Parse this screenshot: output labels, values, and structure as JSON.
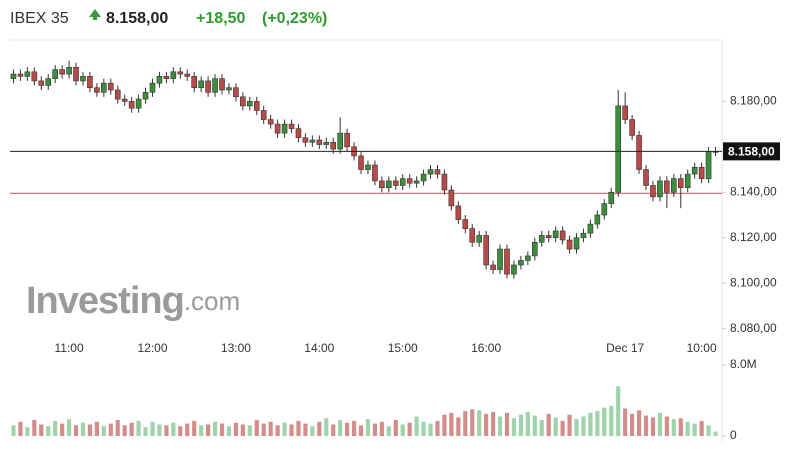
{
  "chart_data": {
    "type": "candlestick",
    "title": "IBEX 35",
    "price_line": {
      "value": 8158,
      "label": "8.158,00"
    },
    "change": "+18,50",
    "change_percent": "(+0,23%)",
    "reference_line": 8139.5,
    "watermark": "Investing",
    "watermark_suffix": ".com",
    "colors": {
      "up": "#3b8e3b",
      "down": "#b94a48",
      "up_volume": "#9fd3aa",
      "down_volume": "#d48c8a",
      "reference": "#d9777a"
    },
    "categories": [
      null,
      null,
      null,
      null,
      null,
      null,
      null,
      null,
      "11:00",
      null,
      null,
      null,
      null,
      null,
      null,
      null,
      null,
      null,
      null,
      null,
      "12:00",
      null,
      null,
      null,
      null,
      null,
      null,
      null,
      null,
      null,
      null,
      null,
      "13:00",
      null,
      null,
      null,
      null,
      null,
      null,
      null,
      null,
      null,
      null,
      null,
      "14:00",
      null,
      null,
      null,
      null,
      null,
      null,
      null,
      null,
      null,
      null,
      null,
      "15:00",
      null,
      null,
      null,
      null,
      null,
      null,
      null,
      null,
      null,
      null,
      null,
      "16:00",
      null,
      null,
      null,
      null,
      null,
      null,
      null,
      null,
      null,
      null,
      null,
      null,
      null,
      null,
      null,
      null,
      null,
      null,
      null,
      "Dec 17",
      null,
      null,
      null,
      null,
      null,
      null,
      null,
      null,
      null,
      null,
      "10:00",
      null,
      null
    ],
    "open": [
      8190,
      8192,
      8191,
      8193,
      8189,
      8187,
      8190,
      8194,
      8192,
      8195,
      8189,
      8191,
      8186,
      8184,
      8188,
      8185,
      8181,
      8180,
      8177,
      8181,
      8184,
      8188,
      8191,
      8190,
      8193,
      8192,
      8191,
      8186,
      8189,
      8184,
      8190,
      8185,
      8186,
      8182,
      8178,
      8180,
      8176,
      8172,
      8170,
      8166,
      8170,
      8168,
      8164,
      8162,
      8163,
      8161,
      8162,
      8159,
      8166,
      8160,
      8156,
      8150,
      8152,
      8145,
      8142,
      8145,
      8143,
      8146,
      8144,
      8145,
      8148,
      8150,
      8148,
      8141,
      8134,
      8128,
      8124,
      8118,
      8121,
      8108,
      8106,
      8115,
      8104,
      8108,
      8110,
      8112,
      8118,
      8121,
      8120,
      8123,
      8119,
      8115,
      8120,
      8122,
      8126,
      8130,
      8135,
      8140,
      8178,
      8172,
      8165,
      8150,
      8143,
      8138,
      8145,
      8140,
      8146,
      8142,
      8148,
      8151,
      8146,
      8158
    ],
    "high": [
      8194,
      8194,
      8195,
      8195,
      8191,
      8192,
      8196,
      8196,
      8198,
      8197,
      8193,
      8193,
      8188,
      8190,
      8190,
      8187,
      8183,
      8182,
      8183,
      8186,
      8190,
      8193,
      8193,
      8195,
      8195,
      8194,
      8193,
      8191,
      8191,
      8192,
      8192,
      8188,
      8188,
      8184,
      8182,
      8182,
      8178,
      8174,
      8172,
      8172,
      8172,
      8170,
      8166,
      8165,
      8165,
      8164,
      8164,
      8173,
      8168,
      8162,
      8158,
      8154,
      8154,
      8147,
      8147,
      8147,
      8148,
      8148,
      8147,
      8150,
      8152,
      8152,
      8150,
      8143,
      8136,
      8130,
      8126,
      8123,
      8123,
      8110,
      8117,
      8117,
      8110,
      8112,
      8114,
      8120,
      8123,
      8123,
      8125,
      8125,
      8121,
      8122,
      8124,
      8128,
      8132,
      8137,
      8142,
      8185,
      8184,
      8174,
      8167,
      8152,
      8145,
      8147,
      8147,
      8148,
      8148,
      8150,
      8153,
      8153,
      8160,
      8160
    ],
    "low": [
      8188,
      8189,
      8189,
      8187,
      8185,
      8185,
      8188,
      8190,
      8190,
      8187,
      8187,
      8184,
      8182,
      8182,
      8183,
      8179,
      8178,
      8175,
      8175,
      8179,
      8182,
      8186,
      8188,
      8188,
      8190,
      8189,
      8184,
      8184,
      8182,
      8182,
      8183,
      8183,
      8180,
      8176,
      8176,
      8174,
      8170,
      8168,
      8164,
      8164,
      8166,
      8162,
      8160,
      8160,
      8159,
      8159,
      8157,
      8157,
      8158,
      8154,
      8148,
      8148,
      8143,
      8140,
      8140,
      8141,
      8141,
      8142,
      8142,
      8143,
      8146,
      8146,
      8139,
      8132,
      8126,
      8122,
      8116,
      8116,
      8106,
      8104,
      8104,
      8102,
      8102,
      8106,
      8108,
      8110,
      8116,
      8118,
      8118,
      8117,
      8113,
      8113,
      8118,
      8120,
      8124,
      8128,
      8133,
      8138,
      8170,
      8163,
      8148,
      8141,
      8136,
      8136,
      8133,
      8138,
      8133,
      8140,
      8146,
      8144,
      8144,
      8156
    ],
    "close": [
      8192,
      8191,
      8193,
      8189,
      8187,
      8190,
      8194,
      8192,
      8195,
      8189,
      8191,
      8186,
      8184,
      8188,
      8185,
      8181,
      8180,
      8177,
      8181,
      8184,
      8188,
      8191,
      8190,
      8193,
      8192,
      8191,
      8186,
      8189,
      8184,
      8190,
      8185,
      8186,
      8182,
      8178,
      8180,
      8176,
      8172,
      8170,
      8166,
      8170,
      8168,
      8164,
      8162,
      8163,
      8161,
      8162,
      8159,
      8166,
      8160,
      8156,
      8150,
      8152,
      8145,
      8142,
      8145,
      8143,
      8146,
      8144,
      8145,
      8148,
      8150,
      8148,
      8141,
      8134,
      8128,
      8124,
      8118,
      8121,
      8108,
      8106,
      8115,
      8104,
      8108,
      8110,
      8112,
      8118,
      8121,
      8120,
      8123,
      8119,
      8115,
      8120,
      8122,
      8126,
      8130,
      8135,
      8140,
      8178,
      8172,
      8165,
      8150,
      8143,
      8138,
      8145,
      8140,
      8146,
      8142,
      8148,
      8151,
      8146,
      8158,
      8158
    ],
    "ylim": [
      8075,
      8207
    ],
    "yticks": [
      {
        "value": 8180,
        "label": "8.180,00"
      },
      {
        "value": 8140,
        "label": "8.140,00"
      },
      {
        "value": 8120,
        "label": "8.120,00"
      },
      {
        "value": 8100,
        "label": "8.100,00"
      },
      {
        "value": 8080,
        "label": "8.080,00"
      }
    ],
    "volume": {
      "values": [
        1.2,
        1.6,
        1.0,
        1.8,
        1.3,
        1.1,
        1.7,
        1.4,
        1.9,
        1.2,
        1.5,
        1.3,
        1.6,
        1.1,
        1.4,
        1.8,
        1.2,
        1.5,
        1.7,
        1.0,
        1.6,
        1.3,
        1.2,
        1.5,
        1.1,
        1.4,
        1.7,
        1.2,
        1.3,
        1.6,
        1.4,
        1.1,
        1.5,
        1.3,
        1.2,
        1.8,
        1.4,
        1.6,
        1.2,
        1.5,
        1.3,
        1.7,
        1.4,
        1.1,
        1.6,
        2.0,
        1.3,
        1.8,
        1.5,
        1.7,
        1.2,
        1.9,
        1.4,
        1.6,
        1.1,
        1.8,
        1.3,
        1.5,
        2.2,
        1.6,
        1.4,
        1.7,
        2.4,
        2.6,
        2.1,
        2.8,
        3.0,
        2.9,
        2.5,
        2.7,
        2.2,
        2.6,
        2.0,
        2.4,
        2.7,
        2.3,
        1.8,
        2.5,
        2.1,
        1.7,
        2.4,
        1.9,
        2.2,
        2.6,
        2.8,
        3.2,
        3.4,
        5.6,
        3.1,
        2.5,
        2.9,
        2.3,
        2.1,
        2.6,
        2.2,
        1.9,
        2.0,
        1.6,
        1.4,
        1.7,
        1.2,
        0.5
      ],
      "ylim": [
        0,
        8
      ],
      "yticks": [
        0,
        {
          "value": 8,
          "label": "8.0M"
        }
      ]
    }
  }
}
